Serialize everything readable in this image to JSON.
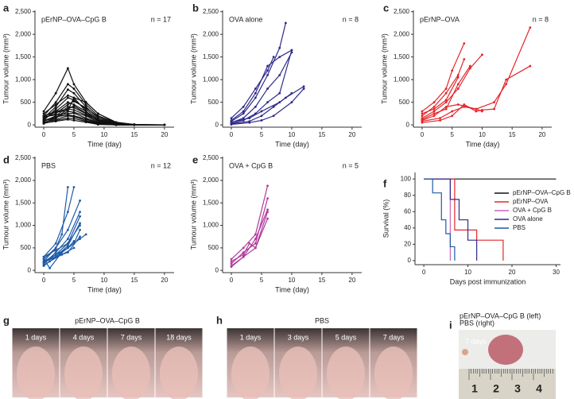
{
  "chart_data": [
    {
      "type": "line",
      "panel_label": "a",
      "title": "pErNP–OVA–CpG B",
      "n_label": "n = 17",
      "color": "#111111",
      "xlabel": "Time (day)",
      "ylabel": "Tumour volume (mm³)",
      "xlim": [
        -1.45,
        21.6
      ],
      "ylim": [
        -50,
        2530
      ],
      "xticks": [
        0,
        5,
        10,
        15,
        20
      ],
      "yticks": [
        0,
        500,
        {
          "value": 1000,
          "label": "1,000"
        },
        {
          "value": 1500,
          "label": "1,500"
        },
        {
          "value": 2000,
          "label": "2,000"
        },
        {
          "value": 2500,
          "label": "2,500"
        }
      ],
      "x": [
        0,
        2,
        4,
        5,
        7,
        9,
        12,
        15,
        20
      ],
      "series": [
        {
          "values": [
            300,
            700,
            1250,
            900,
            500,
            250,
            60,
            10,
            0
          ]
        },
        {
          "values": [
            200,
            500,
            900,
            800,
            450,
            200,
            50,
            0,
            0
          ]
        },
        {
          "values": [
            150,
            400,
            780,
            700,
            400,
            150,
            30,
            0,
            0
          ]
        },
        {
          "values": [
            250,
            450,
            650,
            600,
            500,
            250,
            50,
            10,
            0
          ]
        },
        {
          "values": [
            100,
            350,
            600,
            550,
            350,
            120,
            20,
            0,
            0
          ]
        },
        {
          "values": [
            200,
            300,
            500,
            450,
            300,
            100,
            20,
            0,
            0
          ]
        },
        {
          "values": [
            150,
            250,
            450,
            520,
            380,
            180,
            40,
            0,
            0
          ]
        },
        {
          "values": [
            80,
            200,
            400,
            380,
            250,
            80,
            10,
            0,
            0
          ]
        },
        {
          "values": [
            120,
            300,
            350,
            330,
            220,
            90,
            10,
            0,
            0
          ]
        },
        {
          "values": [
            50,
            150,
            300,
            280,
            200,
            60,
            10,
            0,
            0
          ]
        },
        {
          "values": [
            180,
            220,
            250,
            260,
            150,
            50,
            5,
            0,
            0
          ]
        },
        {
          "values": [
            100,
            180,
            220,
            200,
            130,
            40,
            0,
            0,
            0
          ]
        },
        {
          "values": [
            60,
            120,
            200,
            180,
            100,
            30,
            0,
            0,
            0
          ]
        },
        {
          "values": [
            30,
            100,
            150,
            140,
            80,
            20,
            0,
            0,
            0
          ]
        },
        {
          "values": [
            200,
            280,
            320,
            600,
            300,
            100,
            20,
            0,
            0
          ]
        },
        {
          "values": [
            90,
            160,
            350,
            420,
            260,
            120,
            30,
            0,
            0
          ]
        },
        {
          "values": [
            40,
            80,
            120,
            100,
            60,
            10,
            0,
            0,
            0
          ]
        }
      ]
    },
    {
      "type": "line",
      "panel_label": "b",
      "title": "OVA alone",
      "n_label": "n = 8",
      "color": "#2e2a8a",
      "xlabel": "Time (day)",
      "ylabel": "Tumour volume (mm³)",
      "xlim": [
        -1.45,
        21.6
      ],
      "ylim": [
        -50,
        2530
      ],
      "xticks": [
        0,
        5,
        10,
        15,
        20
      ],
      "yticks": [
        0,
        500,
        {
          "value": 1000,
          "label": "1,000"
        },
        {
          "value": 1500,
          "label": "1,500"
        },
        {
          "value": 2000,
          "label": "2,000"
        },
        {
          "value": 2500,
          "label": "2,500"
        }
      ],
      "series": [
        {
          "x": [
            0,
            2,
            4,
            6,
            8,
            9
          ],
          "values": [
            80,
            250,
            600,
            1100,
            1700,
            2250
          ]
        },
        {
          "x": [
            0,
            2,
            4,
            6,
            8,
            10
          ],
          "values": [
            100,
            300,
            700,
            1300,
            1500,
            1650
          ]
        },
        {
          "x": [
            0,
            2,
            4,
            6,
            7
          ],
          "values": [
            150,
            400,
            800,
            1200,
            1500
          ]
        },
        {
          "x": [
            0,
            2,
            4,
            6,
            8,
            10
          ],
          "values": [
            50,
            150,
            400,
            800,
            1100,
            1600
          ]
        },
        {
          "x": [
            0,
            2,
            4,
            6,
            8,
            10
          ],
          "values": [
            30,
            100,
            250,
            500,
            700,
            1650
          ]
        },
        {
          "x": [
            0,
            3,
            5,
            7,
            9,
            12
          ],
          "values": [
            20,
            80,
            200,
            400,
            600,
            850
          ]
        },
        {
          "x": [
            0,
            3,
            5,
            7,
            10,
            12
          ],
          "values": [
            10,
            50,
            100,
            200,
            500,
            800
          ]
        },
        {
          "x": [
            0,
            3,
            5,
            8,
            10
          ],
          "values": [
            60,
            150,
            300,
            500,
            700
          ]
        }
      ]
    },
    {
      "type": "line",
      "panel_label": "c",
      "title": "pErNP–OVA",
      "n_label": "n = 8",
      "color": "#e3262b",
      "xlabel": "Time (day)",
      "ylabel": "Tumour volume (mm³)",
      "xlim": [
        -1.45,
        21.6
      ],
      "ylim": [
        -50,
        2530
      ],
      "xticks": [
        0,
        5,
        10,
        15,
        20
      ],
      "yticks": [
        0,
        500,
        {
          "value": 1000,
          "label": "1,000"
        },
        {
          "value": 1500,
          "label": "1,500"
        },
        {
          "value": 2000,
          "label": "2,000"
        },
        {
          "value": 2500,
          "label": "2,500"
        }
      ],
      "series": [
        {
          "x": [
            0,
            2,
            4,
            5,
            7
          ],
          "values": [
            300,
            500,
            800,
            1200,
            1800
          ]
        },
        {
          "x": [
            0,
            2,
            4,
            6,
            7
          ],
          "values": [
            200,
            400,
            700,
            1100,
            1450
          ]
        },
        {
          "x": [
            0,
            2,
            4,
            6,
            8,
            10
          ],
          "values": [
            150,
            300,
            500,
            800,
            1250,
            1550
          ]
        },
        {
          "x": [
            0,
            2,
            4,
            6,
            9,
            10
          ],
          "values": [
            100,
            200,
            400,
            450,
            350,
            300
          ]
        },
        {
          "x": [
            0,
            3,
            5,
            7,
            9,
            10,
            12,
            14,
            18
          ],
          "values": [
            50,
            100,
            200,
            450,
            300,
            330,
            350,
            1000,
            1300
          ]
        },
        {
          "x": [
            0,
            3,
            5,
            7,
            9,
            12,
            14,
            18
          ],
          "values": [
            80,
            150,
            300,
            400,
            350,
            500,
            900,
            2150
          ]
        },
        {
          "x": [
            0,
            2,
            4,
            6
          ],
          "values": [
            250,
            350,
            550,
            1050
          ]
        },
        {
          "x": [
            0,
            2,
            4,
            6,
            8
          ],
          "values": [
            120,
            250,
            350,
            900,
            1300
          ]
        }
      ]
    },
    {
      "type": "line",
      "panel_label": "d",
      "title": "PBS",
      "n_label": "n = 12",
      "color": "#1f5aa6",
      "xlabel": "Time (day)",
      "ylabel": "Tumour volume (mm³)",
      "xlim": [
        -1.45,
        21.6
      ],
      "ylim": [
        -50,
        2530
      ],
      "xticks": [
        0,
        5,
        10,
        15,
        20
      ],
      "yticks": [
        0,
        500,
        {
          "value": 1000,
          "label": "1,000"
        },
        {
          "value": 1500,
          "label": "1,500"
        },
        {
          "value": 2000,
          "label": "2,000"
        },
        {
          "value": 2500,
          "label": "2,500"
        }
      ],
      "series": [
        {
          "x": [
            0,
            2,
            4,
            5
          ],
          "values": [
            300,
            600,
            1300,
            1850
          ]
        },
        {
          "x": [
            0,
            2,
            3,
            4
          ],
          "values": [
            200,
            500,
            800,
            1850
          ]
        },
        {
          "x": [
            0,
            2,
            4,
            6
          ],
          "values": [
            250,
            500,
            900,
            1550
          ]
        },
        {
          "x": [
            0,
            2,
            4,
            6
          ],
          "values": [
            150,
            400,
            700,
            1300
          ]
        },
        {
          "x": [
            0,
            2,
            4,
            6
          ],
          "values": [
            200,
            350,
            600,
            1200
          ]
        },
        {
          "x": [
            0,
            2,
            4,
            6
          ],
          "values": [
            100,
            300,
            550,
            1050
          ]
        },
        {
          "x": [
            0,
            2,
            4,
            6,
            7
          ],
          "values": [
            180,
            300,
            500,
            700,
            800
          ]
        },
        {
          "x": [
            0,
            1,
            3,
            5,
            6
          ],
          "values": [
            250,
            50,
            400,
            600,
            900
          ]
        },
        {
          "x": [
            0,
            2,
            4,
            6
          ],
          "values": [
            300,
            450,
            600,
            1000
          ]
        },
        {
          "x": [
            0,
            2,
            4,
            5
          ],
          "values": [
            150,
            350,
            500,
            650
          ]
        },
        {
          "x": [
            0,
            2,
            4,
            6
          ],
          "values": [
            200,
            300,
            400,
            750
          ]
        },
        {
          "x": [
            0,
            1,
            3,
            5
          ],
          "values": [
            120,
            200,
            350,
            500
          ]
        }
      ]
    },
    {
      "type": "line",
      "panel_label": "e",
      "title": "OVA + CpG B",
      "n_label": "n = 5",
      "color": "#b03a9a",
      "xlabel": "Time (day)",
      "ylabel": "Tumour volume (mm³)",
      "xlim": [
        -1.45,
        21.6
      ],
      "ylim": [
        -50,
        2530
      ],
      "xticks": [
        0,
        5,
        10,
        15,
        20
      ],
      "yticks": [
        0,
        500,
        {
          "value": 1000,
          "label": "1,000"
        },
        {
          "value": 1500,
          "label": "1,500"
        },
        {
          "value": 2000,
          "label": "2,000"
        },
        {
          "value": 2500,
          "label": "2,500"
        }
      ],
      "series": [
        {
          "x": [
            0,
            2,
            4,
            6
          ],
          "values": [
            250,
            500,
            800,
            1880
          ]
        },
        {
          "x": [
            0,
            2,
            4,
            6
          ],
          "values": [
            150,
            400,
            600,
            1600
          ]
        },
        {
          "x": [
            0,
            2,
            4,
            6
          ],
          "values": [
            100,
            300,
            700,
            1350
          ]
        },
        {
          "x": [
            0,
            2,
            3,
            4,
            6
          ],
          "values": [
            200,
            350,
            600,
            500,
            1300
          ]
        },
        {
          "x": [
            0,
            2,
            4,
            6
          ],
          "values": [
            80,
            300,
            500,
            1150
          ]
        }
      ]
    },
    {
      "type": "step",
      "panel_label": "f",
      "xlabel": "Days post immunization",
      "ylabel": "Survival (%)",
      "xlim": [
        -2,
        31
      ],
      "ylim": [
        -5,
        108
      ],
      "xticks": [
        0,
        10,
        20,
        30
      ],
      "yticks": [
        0,
        20,
        40,
        60,
        80,
        100
      ],
      "series": [
        {
          "name": "pErNP–OVA–CpG B",
          "color": "#111111",
          "x": [
            0,
            30
          ],
          "values": [
            100,
            100
          ]
        },
        {
          "name": "pErNP–OVA",
          "color": "#e3262b",
          "x": [
            0,
            7,
            12,
            18
          ],
          "values": [
            100,
            37.5,
            25,
            0
          ]
        },
        {
          "name": "OVA + CpG B",
          "color": "#c866b8",
          "x": [
            0,
            6
          ],
          "values": [
            100,
            0
          ]
        },
        {
          "name": "OVA alone",
          "color": "#2e2a8a",
          "x": [
            0,
            6,
            8,
            10,
            12
          ],
          "values": [
            100,
            75,
            50,
            25,
            0
          ]
        },
        {
          "name": "PBS",
          "color": "#1f5aa6",
          "x": [
            0,
            2,
            4,
            5,
            6,
            7
          ],
          "values": [
            100,
            83,
            50,
            33,
            17,
            0
          ]
        }
      ]
    }
  ],
  "photos": {
    "g": {
      "panel_label": "g",
      "title": "pErNP–OVA–CpG B",
      "captions": [
        "1 days",
        "4 days",
        "7 days",
        "18 days"
      ]
    },
    "h": {
      "panel_label": "h",
      "title": "PBS",
      "captions": [
        "1 days",
        "3 days",
        "5 days",
        "7 days"
      ]
    },
    "i": {
      "panel_label": "i",
      "lines": [
        "pErNP–OVA–CpG B (left)",
        "PBS (right)"
      ],
      "caption": "7 days",
      "ruler": [
        1,
        2,
        3,
        4
      ]
    }
  }
}
